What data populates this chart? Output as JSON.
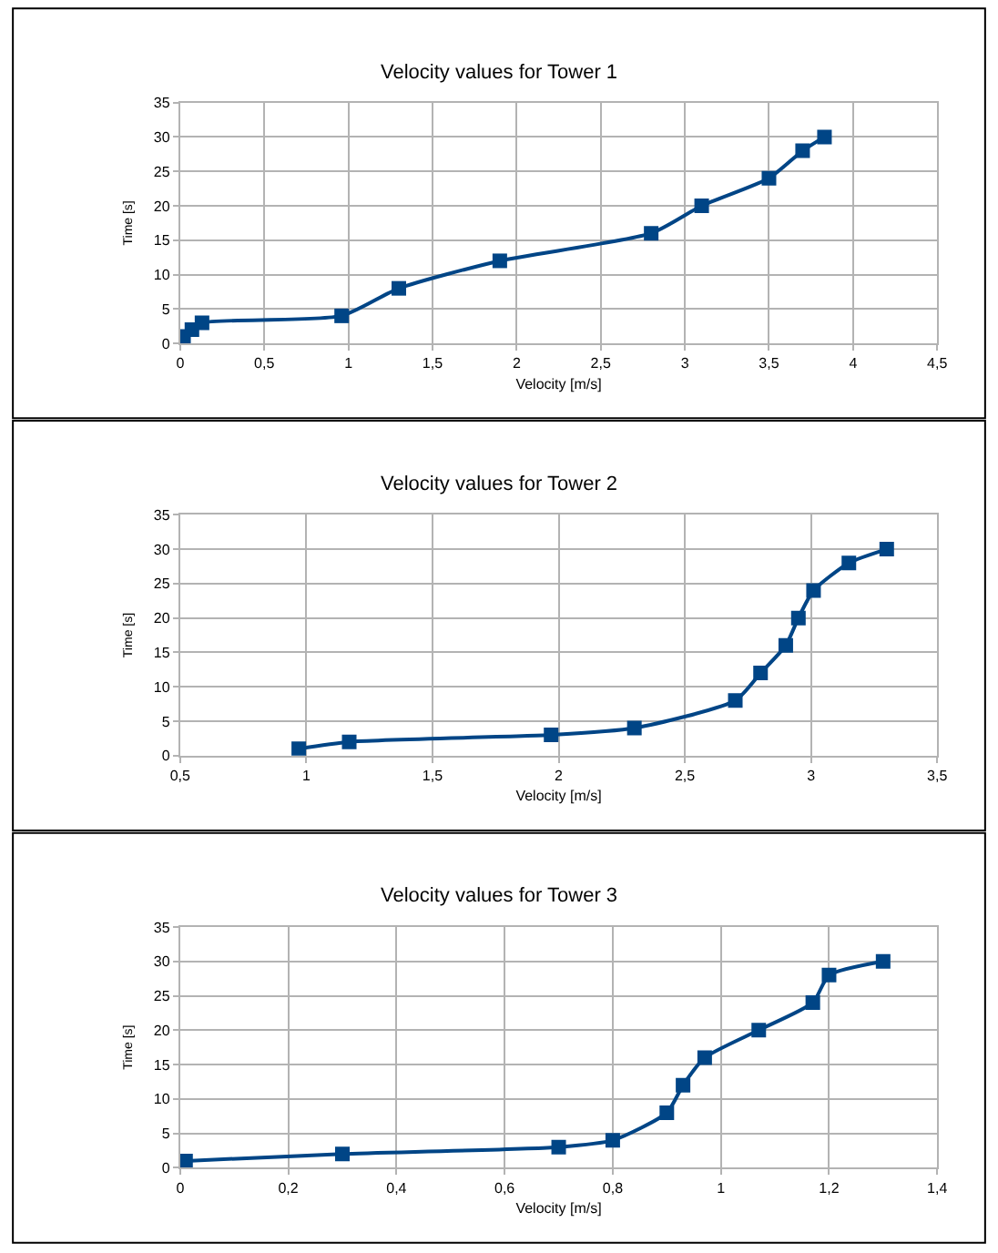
{
  "chart_data": [
    {
      "type": "line",
      "title": "Velocity values for Tower 1",
      "xlabel": "Velocity [m/s]",
      "ylabel": "Time [s]",
      "marker": "square",
      "line_style": "solid",
      "grid": true,
      "x": [
        0.02,
        0.07,
        0.13,
        0.96,
        1.3,
        1.9,
        2.8,
        3.1,
        3.5,
        3.7,
        3.83
      ],
      "series": [
        {
          "color": "#004586",
          "values": [
            1,
            2,
            3,
            4,
            8,
            12,
            16,
            20,
            24,
            28,
            30
          ]
        }
      ],
      "xlim": [
        0,
        4.5
      ],
      "xticks": [
        0,
        {
          "value": 0.5,
          "label": "0,5"
        },
        1,
        {
          "value": 1.5,
          "label": "1,5"
        },
        2,
        {
          "value": 2.5,
          "label": "2,5"
        },
        3,
        {
          "value": 3.5,
          "label": "3,5"
        },
        4,
        {
          "value": 4.5,
          "label": "4,5"
        }
      ],
      "ylim": [
        0,
        35
      ],
      "yticks": [
        0,
        5,
        10,
        15,
        20,
        25,
        30,
        35
      ]
    },
    {
      "type": "line",
      "title": "Velocity values for Tower 2",
      "xlabel": "Velocity [m/s]",
      "ylabel": "Time [s]",
      "marker": "square",
      "line_style": "solid",
      "grid": true,
      "x": [
        0.97,
        1.17,
        1.97,
        2.3,
        2.7,
        2.8,
        2.9,
        2.95,
        3.01,
        3.15,
        3.3
      ],
      "series": [
        {
          "color": "#004586",
          "values": [
            1,
            2,
            3,
            4,
            8,
            12,
            16,
            20,
            24,
            28,
            30
          ]
        }
      ],
      "xlim": [
        0.5,
        3.5
      ],
      "xticks": [
        {
          "value": 0.5,
          "label": "0,5"
        },
        1,
        {
          "value": 1.5,
          "label": "1,5"
        },
        2,
        {
          "value": 2.5,
          "label": "2,5"
        },
        3,
        {
          "value": 3.5,
          "label": "3,5"
        }
      ],
      "ylim": [
        0,
        35
      ],
      "yticks": [
        0,
        5,
        10,
        15,
        20,
        25,
        30,
        35
      ]
    },
    {
      "type": "line",
      "title": "Velocity values for Tower 3",
      "xlabel": "Velocity [m/s]",
      "ylabel": "Time [s]",
      "marker": "square",
      "line_style": "solid",
      "grid": true,
      "x": [
        0.01,
        0.3,
        0.7,
        0.8,
        0.9,
        0.93,
        0.97,
        1.07,
        1.17,
        1.2,
        1.3
      ],
      "series": [
        {
          "color": "#004586",
          "values": [
            1,
            2,
            3,
            4,
            8,
            12,
            16,
            20,
            24,
            28,
            30
          ]
        }
      ],
      "xlim": [
        0,
        1.4
      ],
      "xticks": [
        0,
        {
          "value": 0.2,
          "label": "0,2"
        },
        {
          "value": 0.4,
          "label": "0,4"
        },
        {
          "value": 0.6,
          "label": "0,6"
        },
        {
          "value": 0.8,
          "label": "0,8"
        },
        1,
        {
          "value": 1.2,
          "label": "1,2"
        },
        {
          "value": 1.4,
          "label": "1,4"
        }
      ],
      "ylim": [
        0,
        35
      ],
      "yticks": [
        0,
        5,
        10,
        15,
        20,
        25,
        30,
        35
      ]
    }
  ]
}
